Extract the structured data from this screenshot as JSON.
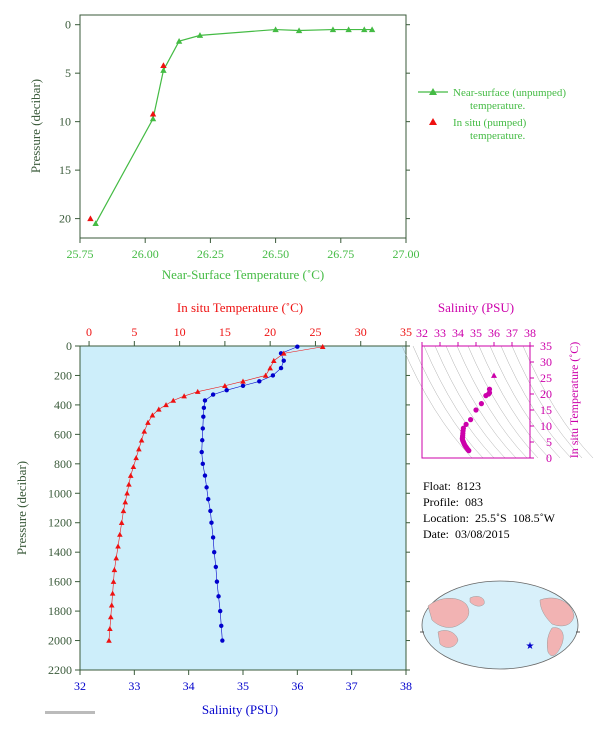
{
  "colors": {
    "green": "#44bb44",
    "axis_dark": "#3a5a3a",
    "red": "#ee1111",
    "blue": "#0000cc",
    "magenta": "#cc00aa",
    "plot_bg": "#cdeefa",
    "map_land": "#f2b3b3",
    "map_ocean": "#d8f0fa"
  },
  "chart_data": [
    {
      "type": "line",
      "xlabel": "Near-Surface Temperature (˚C)",
      "ylabel": "Pressure (decibar)",
      "xlim": [
        25.75,
        27.0
      ],
      "ylim": [
        22,
        -1
      ],
      "xticks": [
        "25.75",
        "26.00",
        "26.25",
        "26.50",
        "26.75",
        "27.00"
      ],
      "yticks": [
        "0",
        "5",
        "10",
        "15",
        "20"
      ],
      "legend_placement": "right",
      "series": [
        {
          "name": "Near-surface (unpumped) temperature.",
          "marker": "triangle",
          "points": [
            [
              25.81,
              20.5
            ],
            [
              26.03,
              9.7
            ],
            [
              26.07,
              4.7
            ],
            [
              26.13,
              1.7
            ],
            [
              26.21,
              1.1
            ],
            [
              26.5,
              0.5
            ],
            [
              26.59,
              0.6
            ],
            [
              26.72,
              0.5
            ],
            [
              26.78,
              0.5
            ],
            [
              26.84,
              0.5
            ],
            [
              26.87,
              0.5
            ]
          ]
        },
        {
          "name": "In situ (pumped) temperature.",
          "marker": "triangle",
          "points": [
            [
              25.79,
              20.0
            ],
            [
              26.03,
              9.2
            ],
            [
              26.07,
              4.2
            ]
          ]
        }
      ]
    },
    {
      "type": "line",
      "top_xlabel": "In situ Temperature (˚C)",
      "xlabel": "Salinity (PSU)",
      "ylabel": "Pressure (decibar)",
      "temp_lim": [
        -1,
        35
      ],
      "sal_lim": [
        32,
        38
      ],
      "ylim": [
        2200,
        0
      ],
      "temp_ticks": [
        "0",
        "5",
        "10",
        "15",
        "20",
        "25",
        "30",
        "35"
      ],
      "sal_ticks": [
        "32",
        "33",
        "34",
        "35",
        "36",
        "37",
        "38"
      ],
      "yticks": [
        "0",
        "200",
        "400",
        "600",
        "800",
        "1000",
        "1200",
        "1400",
        "1600",
        "1800",
        "2000",
        "2200"
      ],
      "temperature_profile": [
        [
          25.8,
          5
        ],
        [
          21.5,
          50
        ],
        [
          20.4,
          100
        ],
        [
          20.0,
          150
        ],
        [
          19.5,
          200
        ],
        [
          17.0,
          240
        ],
        [
          15.0,
          270
        ],
        [
          12.0,
          310
        ],
        [
          10.5,
          340
        ],
        [
          9.3,
          370
        ],
        [
          8.5,
          400
        ],
        [
          7.7,
          430
        ],
        [
          7.0,
          470
        ],
        [
          6.5,
          520
        ],
        [
          6.1,
          580
        ],
        [
          5.8,
          640
        ],
        [
          5.5,
          700
        ],
        [
          5.2,
          760
        ],
        [
          4.9,
          820
        ],
        [
          4.6,
          880
        ],
        [
          4.4,
          940
        ],
        [
          4.2,
          1000
        ],
        [
          4.0,
          1060
        ],
        [
          3.8,
          1120
        ],
        [
          3.6,
          1200
        ],
        [
          3.4,
          1280
        ],
        [
          3.2,
          1360
        ],
        [
          3.0,
          1440
        ],
        [
          2.8,
          1520
        ],
        [
          2.7,
          1600
        ],
        [
          2.6,
          1680
        ],
        [
          2.5,
          1760
        ],
        [
          2.4,
          1840
        ],
        [
          2.3,
          1920
        ],
        [
          2.2,
          2000
        ]
      ],
      "salinity_profile": [
        [
          36.0,
          5
        ],
        [
          35.7,
          50
        ],
        [
          35.75,
          100
        ],
        [
          35.7,
          150
        ],
        [
          35.55,
          200
        ],
        [
          35.3,
          240
        ],
        [
          35.0,
          270
        ],
        [
          34.7,
          300
        ],
        [
          34.45,
          330
        ],
        [
          34.3,
          370
        ],
        [
          34.28,
          420
        ],
        [
          34.27,
          480
        ],
        [
          34.26,
          560
        ],
        [
          34.25,
          640
        ],
        [
          34.24,
          720
        ],
        [
          34.26,
          800
        ],
        [
          34.3,
          880
        ],
        [
          34.33,
          960
        ],
        [
          34.36,
          1040
        ],
        [
          34.4,
          1120
        ],
        [
          34.42,
          1200
        ],
        [
          34.45,
          1300
        ],
        [
          34.47,
          1400
        ],
        [
          34.5,
          1500
        ],
        [
          34.52,
          1600
        ],
        [
          34.55,
          1700
        ],
        [
          34.58,
          1800
        ],
        [
          34.6,
          1900
        ],
        [
          34.62,
          2000
        ]
      ]
    },
    {
      "type": "scatter",
      "title": "Salinity (PSU)",
      "ylabel": "In situ Temperature (˚C)",
      "xlim": [
        32,
        38
      ],
      "ylim": [
        0,
        35
      ],
      "xticks": [
        "32",
        "33",
        "34",
        "35",
        "36",
        "37",
        "38"
      ],
      "yticks": [
        "0",
        "5",
        "10",
        "15",
        "20",
        "25",
        "30",
        "35"
      ],
      "points": [
        [
          36.0,
          25.8
        ],
        [
          35.75,
          21.5
        ],
        [
          35.75,
          20.4
        ],
        [
          35.7,
          20.0
        ],
        [
          35.55,
          19.5
        ],
        [
          35.3,
          17.0
        ],
        [
          35.0,
          15.0
        ],
        [
          34.7,
          12.0
        ],
        [
          34.45,
          10.5
        ],
        [
          34.3,
          9.3
        ],
        [
          34.28,
          8.5
        ],
        [
          34.27,
          7.7
        ],
        [
          34.26,
          7.0
        ],
        [
          34.25,
          6.5
        ],
        [
          34.24,
          6.0
        ],
        [
          34.26,
          5.5
        ],
        [
          34.3,
          5.0
        ],
        [
          34.33,
          4.6
        ],
        [
          34.36,
          4.2
        ],
        [
          34.4,
          3.8
        ],
        [
          34.45,
          3.4
        ],
        [
          34.5,
          3.0
        ],
        [
          34.55,
          2.6
        ],
        [
          34.6,
          2.3
        ]
      ]
    }
  ],
  "float_info": {
    "float": "Float:  8123",
    "profile": "Profile:  083",
    "location": "Location:  25.5˚S  108.5˚W",
    "date": "Date:  03/08/2015"
  }
}
